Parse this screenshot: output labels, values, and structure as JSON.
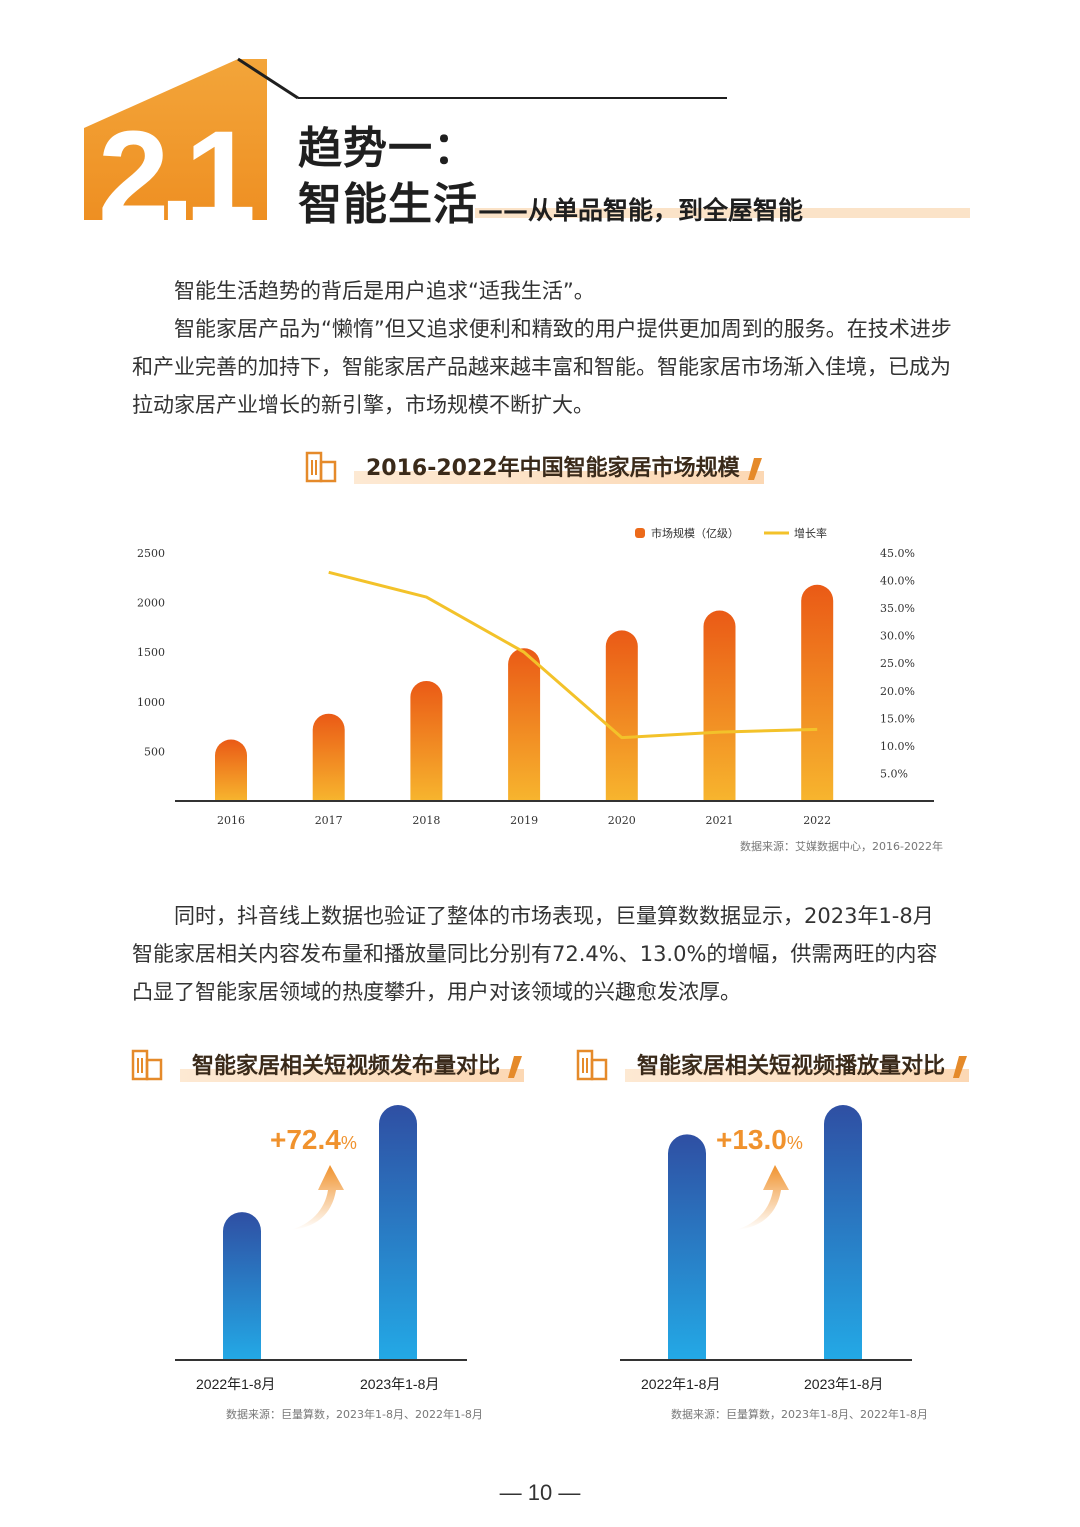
{
  "header": {
    "number_badge": "2.1",
    "title_line1": "趋势一：",
    "title_line2": "智能生活",
    "title_sub": "——从单品智能，到全屋智能"
  },
  "intro": {
    "p1": "智能生活趋势的背后是用户追求“适我生活”。",
    "p2": "智能家居产品为“懒惰”但又追求便利和精致的用户提供更加周到的服务。在技术进步和产业完善的加持下，智能家居产品越来越丰富和智能。智能家居市场渐入佳境，已成为拉动家居产业增长的新引擎，市场规模不断扩大。"
  },
  "section1": {
    "title": "2016-2022年中国智能家居市场规模",
    "source": "数据来源：艾媒数据中心，2016-2022年"
  },
  "middle": {
    "p": "同时，抖音线上数据也验证了整体的市场表现，巨量算数数据显示，2023年1-8月智能家居相关内容发布量和播放量同比分别有72.4%、13.0%的增幅，供需两旺的内容凸显了智能家居领域的热度攀升，用户对该领域的兴趣愈发浓厚。"
  },
  "section2": {
    "title": "智能家居相关短视频发布量对比",
    "growth_num": "+72.4",
    "growth_unit": "%",
    "source": "数据来源：巨量算数，2023年1-8月、2022年1-8月"
  },
  "section3": {
    "title": "智能家居相关短视频播放量对比",
    "growth_num": "+13.0",
    "growth_unit": "%",
    "source": "数据来源：巨量算数，2023年1-8月、2022年1-8月"
  },
  "page_number": "— 10 —",
  "colors": {
    "accent_orange": "#f0922d",
    "bar_top": "#ea5a16",
    "bar_bottom": "#f7b52e",
    "line": "#f3c22a",
    "blue_top": "#2f4fa3",
    "blue_bottom": "#23a9e6"
  },
  "chart_data": [
    {
      "type": "bar",
      "title": "2016-2022年中国智能家居市场规模",
      "categories": [
        "2016",
        "2017",
        "2018",
        "2019",
        "2020",
        "2021",
        "2022"
      ],
      "series": [
        {
          "name": "市场规模（亿级）",
          "type": "bar",
          "axis": "left",
          "values": [
            620,
            880,
            1210,
            1540,
            1720,
            1920,
            2180
          ]
        },
        {
          "name": "增长率",
          "type": "line",
          "axis": "right",
          "values": [
            null,
            41.5,
            37.0,
            27.0,
            11.5,
            12.5,
            13.0
          ]
        }
      ],
      "y_left": {
        "ticks": [
          "500",
          "1000",
          "1500",
          "2000",
          "2500"
        ],
        "range": [
          0,
          2500
        ]
      },
      "y_right": {
        "ticks": [
          "5.0%",
          "10.0%",
          "15.0%",
          "20.0%",
          "25.0%",
          "30.0%",
          "35.0%",
          "40.0%",
          "45.0%"
        ],
        "range": [
          0,
          45
        ]
      },
      "legend_position": "top-right",
      "grid": false
    },
    {
      "type": "bar",
      "title": "智能家居相关短视频发布量对比",
      "categories": [
        "2022年1-8月",
        "2023年1-8月"
      ],
      "values": [
        1.0,
        1.724
      ],
      "annotation": "+72.4%"
    },
    {
      "type": "bar",
      "title": "智能家居相关短视频播放量对比",
      "categories": [
        "2022年1-8月",
        "2023年1-8月"
      ],
      "values": [
        1.0,
        1.13
      ],
      "annotation": "+13.0%"
    }
  ]
}
